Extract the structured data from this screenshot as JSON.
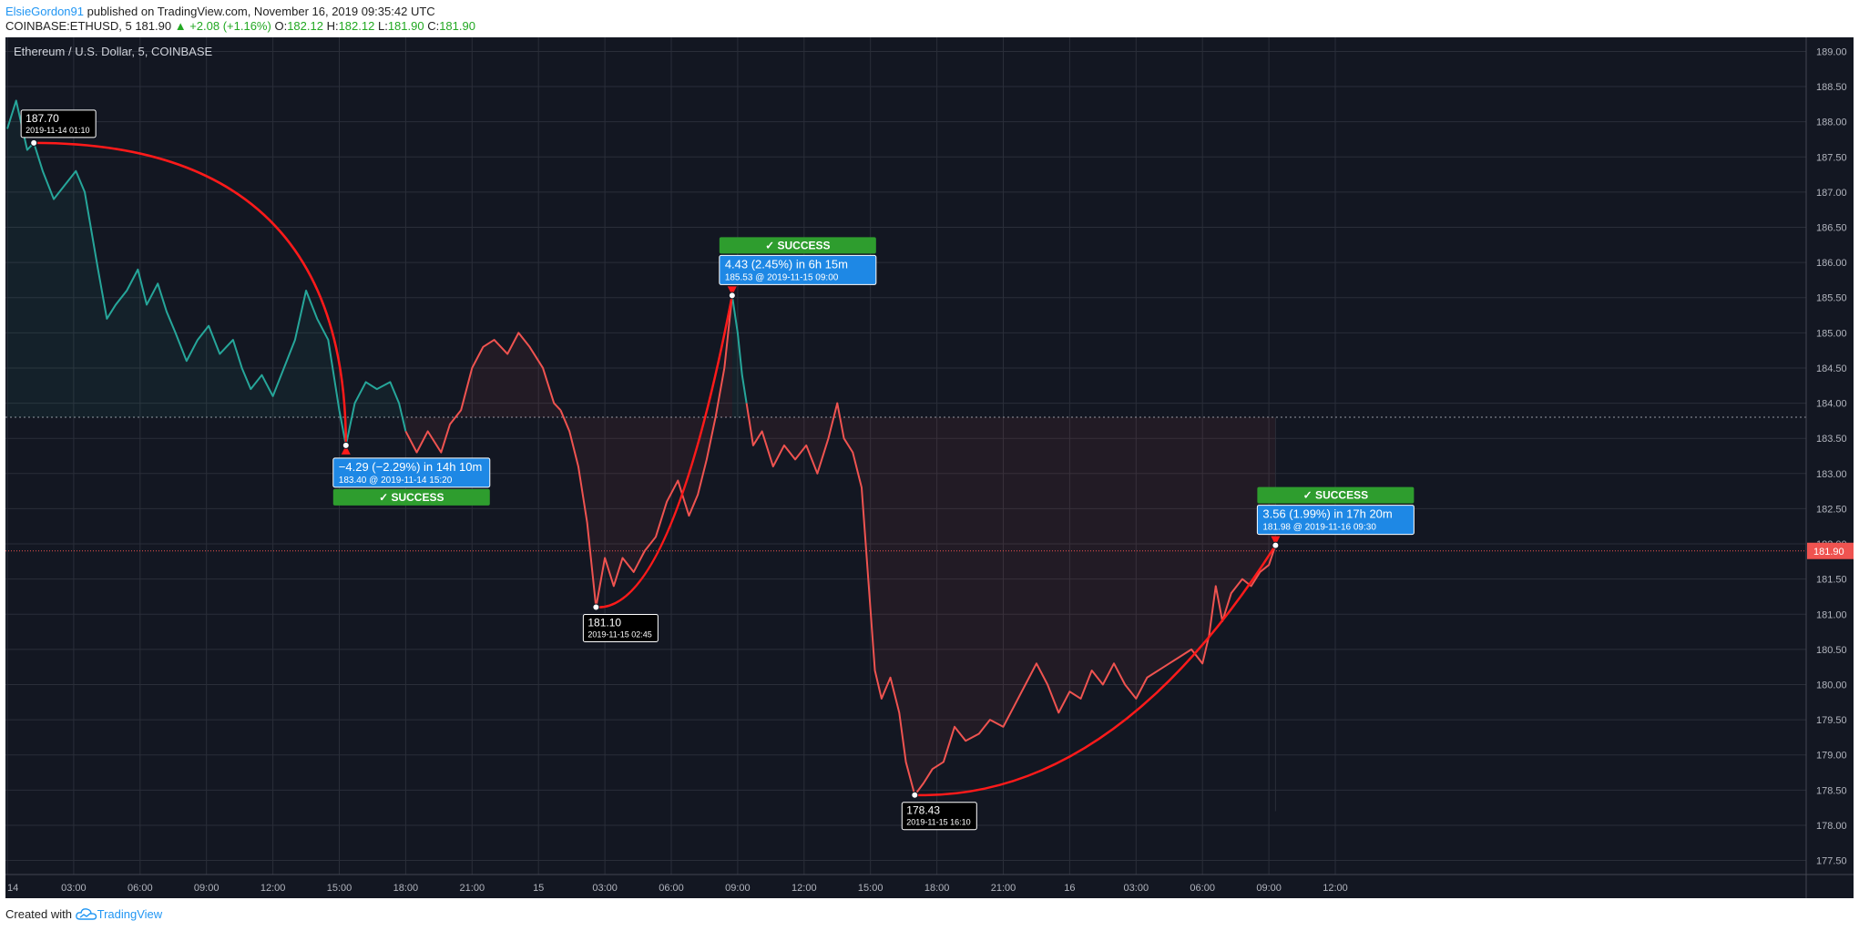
{
  "header": {
    "author": "ElsieGordon91",
    "published": " published on TradingView.com, November 16, 2019 09:35:42 UTC",
    "symbol": "COINBASE:ETHUSD, 5",
    "last": "181.90",
    "change": "▲ +2.08 (+1.16%)",
    "o_label": "O:",
    "o": "182.12",
    "h_label": "H:",
    "h": "182.12",
    "l_label": "L:",
    "l": "181.90",
    "c_label": "C:",
    "c": "181.90"
  },
  "footer": {
    "created_with": "Created with",
    "brand": "TradingView"
  },
  "colors": {
    "background": "#131722",
    "grid": "#2a2e39",
    "up": "#26a69a",
    "down": "#ef5350",
    "arc": "#ff1a1a",
    "callout": "#1e88e5",
    "success": "#2e9d2e",
    "price_line": "#ef5350",
    "axis_text": "#b2b5be"
  },
  "chart_data": {
    "type": "line",
    "title": "Ethereum / U.S. Dollar, 5, COINBASE",
    "x_ticks": [
      "14",
      "03:00",
      "06:00",
      "09:00",
      "12:00",
      "15:00",
      "18:00",
      "21:00",
      "15",
      "03:00",
      "06:00",
      "09:00",
      "12:00",
      "15:00",
      "18:00",
      "21:00",
      "16",
      "03:00",
      "06:00",
      "09:00",
      "12:00"
    ],
    "y_ticks": [
      "177.50",
      "178.00",
      "178.50",
      "179.00",
      "179.50",
      "180.00",
      "180.50",
      "181.00",
      "181.50",
      "182.00",
      "182.50",
      "183.00",
      "183.50",
      "184.00",
      "184.50",
      "185.00",
      "185.50",
      "186.00",
      "186.50",
      "187.00",
      "187.50",
      "188.00",
      "188.50",
      "189.00"
    ],
    "ylim": [
      177.3,
      189.2
    ],
    "x_range_hours": [
      0,
      62.5
    ],
    "reference_price": 183.8,
    "last_price": 181.9,
    "last_price_label": "181.90",
    "series": [
      {
        "color": "up",
        "points": [
          [
            0,
            187.9
          ],
          [
            0.4,
            188.3
          ],
          [
            0.9,
            187.6
          ],
          [
            1.2,
            187.7
          ],
          [
            1.6,
            187.3
          ],
          [
            2.1,
            186.9
          ],
          [
            2.6,
            187.1
          ],
          [
            3.1,
            187.3
          ],
          [
            3.5,
            187.0
          ],
          [
            4.1,
            185.9
          ],
          [
            4.5,
            185.2
          ],
          [
            4.9,
            185.4
          ],
          [
            5.4,
            185.6
          ],
          [
            5.9,
            185.9
          ],
          [
            6.3,
            185.4
          ],
          [
            6.8,
            185.7
          ],
          [
            7.2,
            185.3
          ],
          [
            7.6,
            185.0
          ],
          [
            8.1,
            184.6
          ],
          [
            8.6,
            184.9
          ],
          [
            9.1,
            185.1
          ],
          [
            9.6,
            184.7
          ],
          [
            10.2,
            184.9
          ],
          [
            10.6,
            184.5
          ],
          [
            11.0,
            184.2
          ],
          [
            11.5,
            184.4
          ],
          [
            12.0,
            184.1
          ],
          [
            12.5,
            184.5
          ],
          [
            13.0,
            184.9
          ],
          [
            13.5,
            185.6
          ],
          [
            14.0,
            185.2
          ],
          [
            14.5,
            184.9
          ],
          [
            15.0,
            183.9
          ],
          [
            15.3,
            183.4
          ],
          [
            15.7,
            184.0
          ],
          [
            16.2,
            184.3
          ],
          [
            16.7,
            184.2
          ],
          [
            17.3,
            184.3
          ],
          [
            17.7,
            184.0
          ],
          [
            18.0,
            183.6
          ]
        ]
      },
      {
        "color": "down",
        "points": [
          [
            18.0,
            183.6
          ],
          [
            18.5,
            183.3
          ],
          [
            19.0,
            183.6
          ],
          [
            19.6,
            183.3
          ],
          [
            20.0,
            183.7
          ],
          [
            20.5,
            183.9
          ],
          [
            21.0,
            184.5
          ],
          [
            21.5,
            184.8
          ],
          [
            22.0,
            184.9
          ],
          [
            22.6,
            184.7
          ],
          [
            23.1,
            185.0
          ],
          [
            23.6,
            184.8
          ],
          [
            24.2,
            184.5
          ],
          [
            24.7,
            184.0
          ],
          [
            25.0,
            183.9
          ]
        ]
      },
      {
        "color": "down",
        "points": [
          [
            25.0,
            183.9
          ],
          [
            25.4,
            183.6
          ],
          [
            25.8,
            183.1
          ],
          [
            26.2,
            182.3
          ],
          [
            26.6,
            181.1
          ],
          [
            27.0,
            181.8
          ],
          [
            27.4,
            181.4
          ],
          [
            27.8,
            181.8
          ],
          [
            28.3,
            181.6
          ],
          [
            28.8,
            181.9
          ],
          [
            29.3,
            182.1
          ],
          [
            29.8,
            182.6
          ],
          [
            30.3,
            182.9
          ],
          [
            30.8,
            182.4
          ],
          [
            31.2,
            182.7
          ],
          [
            31.6,
            183.2
          ],
          [
            32.0,
            183.8
          ],
          [
            32.4,
            184.5
          ],
          [
            32.75,
            185.53
          ]
        ]
      },
      {
        "color": "up",
        "points": [
          [
            32.75,
            185.53
          ],
          [
            33.0,
            185.0
          ],
          [
            33.2,
            184.4
          ],
          [
            33.4,
            184.0
          ]
        ]
      },
      {
        "color": "down",
        "points": [
          [
            33.4,
            184.0
          ],
          [
            33.7,
            183.4
          ],
          [
            34.1,
            183.6
          ],
          [
            34.6,
            183.1
          ],
          [
            35.1,
            183.4
          ],
          [
            35.6,
            183.2
          ],
          [
            36.1,
            183.4
          ],
          [
            36.6,
            183.0
          ],
          [
            37.1,
            183.5
          ],
          [
            37.5,
            184.0
          ],
          [
            37.8,
            183.5
          ],
          [
            38.2,
            183.3
          ],
          [
            38.6,
            182.8
          ],
          [
            38.9,
            181.5
          ],
          [
            39.2,
            180.2
          ],
          [
            39.5,
            179.8
          ],
          [
            39.9,
            180.1
          ],
          [
            40.3,
            179.6
          ],
          [
            40.6,
            178.9
          ],
          [
            41.0,
            178.43
          ],
          [
            41.4,
            178.6
          ],
          [
            41.8,
            178.8
          ],
          [
            42.3,
            178.9
          ],
          [
            42.8,
            179.4
          ],
          [
            43.3,
            179.2
          ],
          [
            43.9,
            179.3
          ],
          [
            44.4,
            179.5
          ],
          [
            45.0,
            179.4
          ],
          [
            45.5,
            179.7
          ],
          [
            46.0,
            180.0
          ],
          [
            46.5,
            180.3
          ],
          [
            47.0,
            180.0
          ],
          [
            47.5,
            179.6
          ],
          [
            48.0,
            179.9
          ],
          [
            48.5,
            179.8
          ],
          [
            49.0,
            180.2
          ],
          [
            49.5,
            180.0
          ],
          [
            50.0,
            180.3
          ],
          [
            50.5,
            180.0
          ],
          [
            51.0,
            179.8
          ],
          [
            51.5,
            180.1
          ],
          [
            52.0,
            180.2
          ],
          [
            52.5,
            180.3
          ],
          [
            53.0,
            180.4
          ],
          [
            53.5,
            180.5
          ],
          [
            54.0,
            180.3
          ],
          [
            54.3,
            180.7
          ],
          [
            54.6,
            181.4
          ],
          [
            54.9,
            180.9
          ],
          [
            55.3,
            181.3
          ],
          [
            55.8,
            181.5
          ],
          [
            56.2,
            181.4
          ],
          [
            56.6,
            181.6
          ],
          [
            57.0,
            181.7
          ],
          [
            57.3,
            181.98
          ]
        ]
      }
    ],
    "pivots": [
      {
        "x": 1.2,
        "y": 187.7,
        "label": "187.70",
        "date": "2019-11-14 01:10",
        "pos": "above"
      },
      {
        "x": 26.6,
        "y": 181.1,
        "label": "181.10",
        "date": "2019-11-15 02:45",
        "pos": "below"
      },
      {
        "x": 41.0,
        "y": 178.43,
        "label": "178.43",
        "date": "2019-11-15 16:10",
        "pos": "below"
      }
    ],
    "projections": [
      {
        "from": [
          1.2,
          187.7
        ],
        "to": [
          15.3,
          183.4
        ],
        "bend": "down",
        "line1": "−4.29 (−2.29%) in 14h 10m",
        "line2": "183.40 @ 2019-11-14  15:20",
        "success": "✓ SUCCESS",
        "pos": "below"
      },
      {
        "from": [
          26.6,
          181.1
        ],
        "to": [
          32.75,
          185.53
        ],
        "bend": "up",
        "line1": "4.43 (2.45%) in 6h 15m",
        "line2": "185.53 @ 2019-11-15  09:00",
        "success": "✓ SUCCESS",
        "pos": "above"
      },
      {
        "from": [
          41.0,
          178.43
        ],
        "to": [
          57.3,
          181.98
        ],
        "bend": "up",
        "line1": "3.56 (1.99%) in 17h 20m",
        "line2": "181.98 @ 2019-11-16  09:30",
        "success": "✓ SUCCESS",
        "pos": "above"
      }
    ]
  }
}
